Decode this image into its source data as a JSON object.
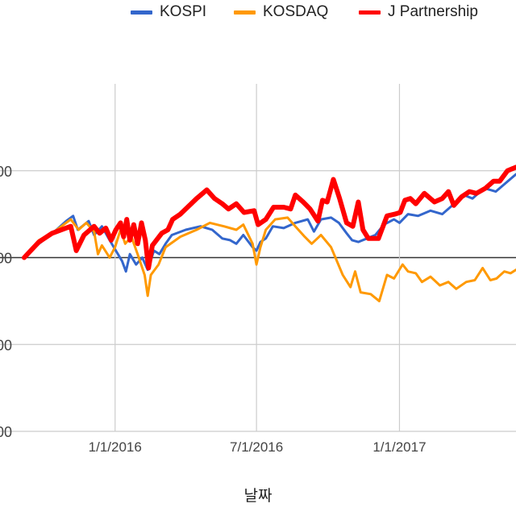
{
  "colors": {
    "grid": "#cccccc",
    "baseline": "#333333",
    "tick_text": "#444444"
  },
  "legend": {
    "placement": "top",
    "items": [
      {
        "label": "KOSPI",
        "color": "#3366cc"
      },
      {
        "label": "KOSDAQ",
        "color": "#ff9900"
      },
      {
        "label": "J Partnership",
        "color": "#ff0000"
      }
    ]
  },
  "chart_data": {
    "type": "line",
    "title": "",
    "xlabel": "날짜",
    "ylabel": "",
    "grid": true,
    "x_type": "date",
    "xlim": [
      "2015-09-06",
      "2017-05-31"
    ],
    "ylim": [
      -50,
      50
    ],
    "y_tick_values": [
      -50,
      -25,
      0,
      25
    ],
    "y_tick_labels": [
      "00",
      "00",
      "00",
      "00"
    ],
    "x_ticks": [
      {
        "date": "2016-01-01",
        "label": "1/1/2016"
      },
      {
        "date": "2016-07-01",
        "label": "7/1/2016"
      },
      {
        "date": "2017-01-01",
        "label": "1/1/2017"
      }
    ],
    "baseline": 0,
    "series": [
      {
        "name": "KOSPI",
        "color": "#3366cc",
        "width": 3,
        "points": [
          [
            "2015-09-06",
            0
          ],
          [
            "2015-09-25",
            4
          ],
          [
            "2015-10-15",
            7.5
          ],
          [
            "2015-10-30",
            10.5
          ],
          [
            "2015-11-08",
            12
          ],
          [
            "2015-11-14",
            8
          ],
          [
            "2015-11-28",
            10.5
          ],
          [
            "2015-12-05",
            6.5
          ],
          [
            "2015-12-15",
            9
          ],
          [
            "2015-12-25",
            5
          ],
          [
            "2016-01-02",
            2
          ],
          [
            "2016-01-10",
            -1
          ],
          [
            "2016-01-15",
            -4
          ],
          [
            "2016-01-20",
            1
          ],
          [
            "2016-01-28",
            -2
          ],
          [
            "2016-02-05",
            0
          ],
          [
            "2016-02-12",
            -3.5
          ],
          [
            "2016-02-20",
            2
          ],
          [
            "2016-02-27",
            1
          ],
          [
            "2016-03-06",
            4
          ],
          [
            "2016-03-14",
            6.5
          ],
          [
            "2016-04-01",
            8
          ],
          [
            "2016-04-20",
            9
          ],
          [
            "2016-05-05",
            8
          ],
          [
            "2016-05-18",
            5.5
          ],
          [
            "2016-05-28",
            5
          ],
          [
            "2016-06-05",
            4
          ],
          [
            "2016-06-14",
            6.5
          ],
          [
            "2016-06-26",
            3
          ],
          [
            "2016-07-01",
            2
          ],
          [
            "2016-07-06",
            4.5
          ],
          [
            "2016-07-13",
            5.5
          ],
          [
            "2016-07-22",
            9
          ],
          [
            "2016-08-05",
            8.5
          ],
          [
            "2016-08-20",
            10
          ],
          [
            "2016-09-05",
            11
          ],
          [
            "2016-09-13",
            7.5
          ],
          [
            "2016-09-22",
            11
          ],
          [
            "2016-10-05",
            11.5
          ],
          [
            "2016-10-15",
            10
          ],
          [
            "2016-10-25",
            7
          ],
          [
            "2016-11-01",
            5
          ],
          [
            "2016-11-09",
            4.5
          ],
          [
            "2016-11-20",
            5.5
          ],
          [
            "2016-12-01",
            6.5
          ],
          [
            "2016-12-12",
            9.5
          ],
          [
            "2016-12-25",
            11
          ],
          [
            "2017-01-01",
            10
          ],
          [
            "2017-01-12",
            12.5
          ],
          [
            "2017-01-25",
            12
          ],
          [
            "2017-02-10",
            13.5
          ],
          [
            "2017-02-25",
            12.5
          ],
          [
            "2017-03-10",
            15
          ],
          [
            "2017-03-25",
            18
          ],
          [
            "2017-04-05",
            17
          ],
          [
            "2017-04-20",
            20
          ],
          [
            "2017-05-05",
            19
          ],
          [
            "2017-05-31",
            24
          ]
        ]
      },
      {
        "name": "KOSDAQ",
        "color": "#ff9900",
        "width": 3,
        "points": [
          [
            "2015-09-06",
            0
          ],
          [
            "2015-09-25",
            5
          ],
          [
            "2015-10-15",
            7.5
          ],
          [
            "2015-11-05",
            11
          ],
          [
            "2015-11-15",
            8
          ],
          [
            "2015-11-25",
            10
          ],
          [
            "2015-12-05",
            7.5
          ],
          [
            "2015-12-10",
            1
          ],
          [
            "2015-12-15",
            3.5
          ],
          [
            "2015-12-25",
            0
          ],
          [
            "2016-01-01",
            3
          ],
          [
            "2016-01-08",
            8
          ],
          [
            "2016-01-14",
            4
          ],
          [
            "2016-01-22",
            6
          ],
          [
            "2016-01-30",
            1
          ],
          [
            "2016-02-08",
            -5
          ],
          [
            "2016-02-12",
            -11
          ],
          [
            "2016-02-16",
            -5
          ],
          [
            "2016-02-26",
            -2
          ],
          [
            "2016-03-06",
            3
          ],
          [
            "2016-03-25",
            6
          ],
          [
            "2016-04-15",
            8
          ],
          [
            "2016-05-02",
            10
          ],
          [
            "2016-05-20",
            9
          ],
          [
            "2016-06-05",
            8
          ],
          [
            "2016-06-14",
            9.5
          ],
          [
            "2016-06-26",
            4
          ],
          [
            "2016-07-01",
            -2
          ],
          [
            "2016-07-06",
            3
          ],
          [
            "2016-07-13",
            8
          ],
          [
            "2016-07-25",
            11
          ],
          [
            "2016-08-10",
            11.5
          ],
          [
            "2016-08-20",
            9
          ],
          [
            "2016-09-01",
            6
          ],
          [
            "2016-09-10",
            4
          ],
          [
            "2016-09-22",
            6.5
          ],
          [
            "2016-10-05",
            3
          ],
          [
            "2016-10-20",
            -5
          ],
          [
            "2016-10-30",
            -8.5
          ],
          [
            "2016-11-05",
            -4
          ],
          [
            "2016-11-12",
            -10
          ],
          [
            "2016-11-25",
            -10.5
          ],
          [
            "2016-12-06",
            -12.5
          ],
          [
            "2016-12-16",
            -5
          ],
          [
            "2016-12-25",
            -6
          ],
          [
            "2017-01-05",
            -2
          ],
          [
            "2017-01-12",
            -4
          ],
          [
            "2017-01-22",
            -4.5
          ],
          [
            "2017-01-30",
            -7
          ],
          [
            "2017-02-10",
            -5.5
          ],
          [
            "2017-02-22",
            -8
          ],
          [
            "2017-03-05",
            -7
          ],
          [
            "2017-03-15",
            -9
          ],
          [
            "2017-03-28",
            -7
          ],
          [
            "2017-04-08",
            -6.5
          ],
          [
            "2017-04-18",
            -3
          ],
          [
            "2017-04-28",
            -6.5
          ],
          [
            "2017-05-06",
            -6
          ],
          [
            "2017-05-16",
            -4
          ],
          [
            "2017-05-24",
            -4.5
          ],
          [
            "2017-05-31",
            -3.5
          ]
        ]
      },
      {
        "name": "J Partnership",
        "color": "#ff0000",
        "width": 6,
        "points": [
          [
            "2015-09-06",
            0
          ],
          [
            "2015-09-25",
            4.5
          ],
          [
            "2015-10-12",
            7
          ],
          [
            "2015-11-05",
            9
          ],
          [
            "2015-11-12",
            2
          ],
          [
            "2015-11-22",
            6.5
          ],
          [
            "2015-12-05",
            9
          ],
          [
            "2015-12-12",
            7
          ],
          [
            "2015-12-20",
            8.5
          ],
          [
            "2015-12-27",
            5
          ],
          [
            "2016-01-02",
            8
          ],
          [
            "2016-01-08",
            10
          ],
          [
            "2016-01-12",
            6
          ],
          [
            "2016-01-16",
            11
          ],
          [
            "2016-01-20",
            5
          ],
          [
            "2016-01-25",
            9.5
          ],
          [
            "2016-01-30",
            4
          ],
          [
            "2016-02-04",
            10
          ],
          [
            "2016-02-09",
            5
          ],
          [
            "2016-02-13",
            -3
          ],
          [
            "2016-02-18",
            3.5
          ],
          [
            "2016-03-01",
            7
          ],
          [
            "2016-03-09",
            8
          ],
          [
            "2016-03-15",
            11
          ],
          [
            "2016-03-25",
            12.5
          ],
          [
            "2016-04-15",
            17
          ],
          [
            "2016-04-28",
            19.5
          ],
          [
            "2016-05-08",
            17
          ],
          [
            "2016-05-18",
            15.5
          ],
          [
            "2016-05-26",
            14
          ],
          [
            "2016-06-05",
            15.5
          ],
          [
            "2016-06-15",
            13
          ],
          [
            "2016-06-28",
            13.5
          ],
          [
            "2016-07-03",
            9.5
          ],
          [
            "2016-07-13",
            11
          ],
          [
            "2016-07-23",
            14.5
          ],
          [
            "2016-08-05",
            14.5
          ],
          [
            "2016-08-14",
            14
          ],
          [
            "2016-08-20",
            18
          ],
          [
            "2016-08-30",
            16
          ],
          [
            "2016-09-08",
            14
          ],
          [
            "2016-09-18",
            10.5
          ],
          [
            "2016-09-24",
            16.5
          ],
          [
            "2016-09-30",
            16
          ],
          [
            "2016-10-08",
            22.5
          ],
          [
            "2016-10-16",
            17
          ],
          [
            "2016-10-25",
            10
          ],
          [
            "2016-11-02",
            9
          ],
          [
            "2016-11-09",
            16
          ],
          [
            "2016-11-15",
            8
          ],
          [
            "2016-11-22",
            5.5
          ],
          [
            "2016-12-05",
            5.5
          ],
          [
            "2016-12-16",
            12
          ],
          [
            "2016-12-26",
            12.5
          ],
          [
            "2017-01-02",
            13
          ],
          [
            "2017-01-08",
            16.5
          ],
          [
            "2017-01-15",
            17
          ],
          [
            "2017-01-22",
            15.5
          ],
          [
            "2017-02-02",
            18.5
          ],
          [
            "2017-02-15",
            16
          ],
          [
            "2017-02-25",
            17
          ],
          [
            "2017-03-05",
            19
          ],
          [
            "2017-03-12",
            15
          ],
          [
            "2017-03-22",
            17.5
          ],
          [
            "2017-04-01",
            19
          ],
          [
            "2017-04-10",
            18.5
          ],
          [
            "2017-04-22",
            20
          ],
          [
            "2017-05-02",
            22
          ],
          [
            "2017-05-10",
            22
          ],
          [
            "2017-05-20",
            25
          ],
          [
            "2017-05-31",
            26
          ]
        ]
      }
    ]
  }
}
